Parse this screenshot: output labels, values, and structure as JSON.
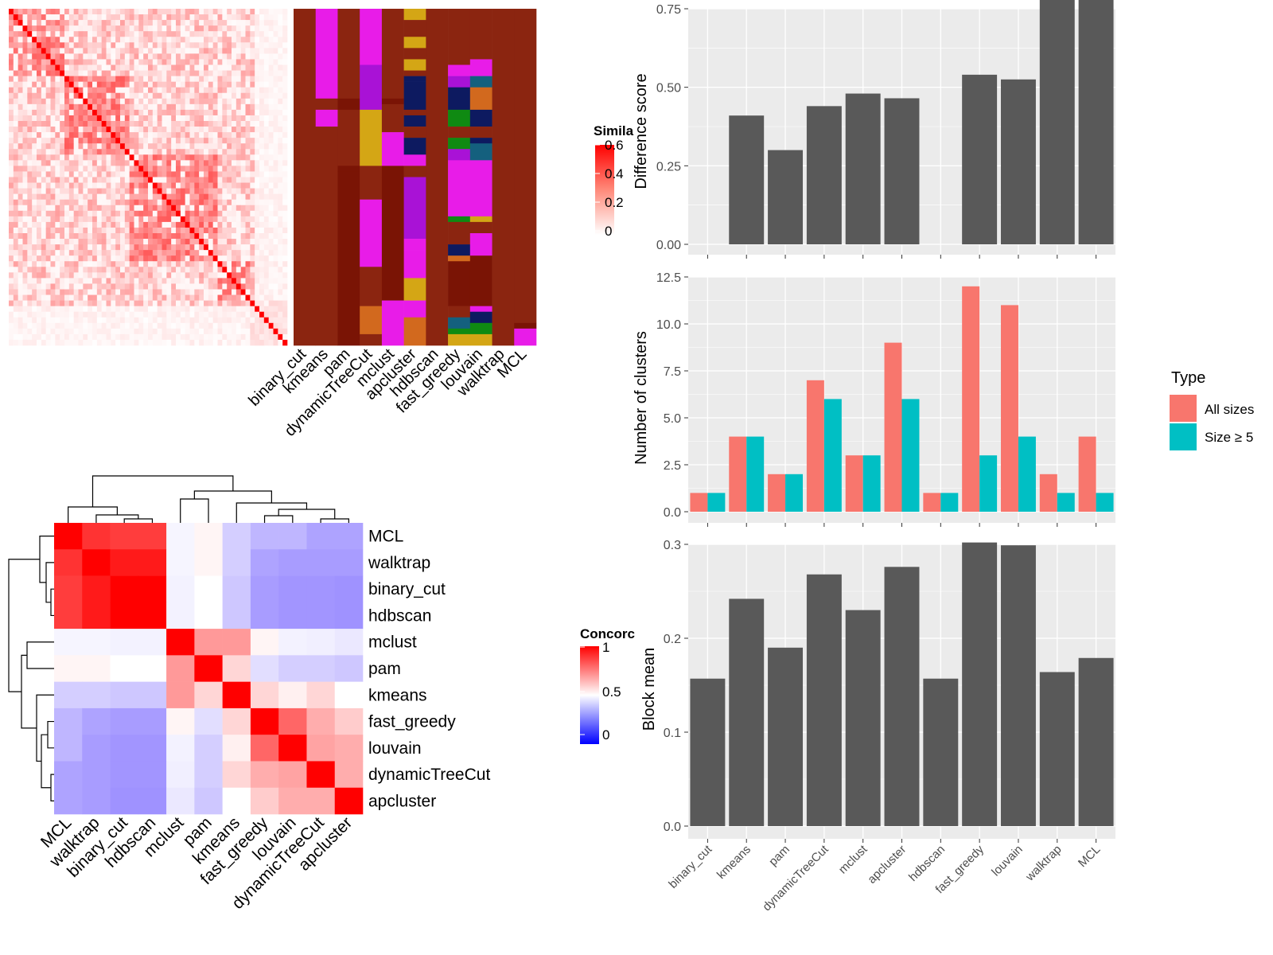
{
  "figure": {
    "similarity_legend_title": "Simila",
    "similarity_legend_ticks": [
      "0.6",
      "0.4",
      "0.2",
      "0"
    ],
    "concordance_legend_title": "Concorc",
    "concordance_legend_ticks": [
      "1",
      "0.5",
      "0"
    ],
    "type_legend_title": "Type",
    "colors": {
      "panel_bg": "#EBEBEB",
      "grid": "#FFFFFF",
      "bar_gray": "#595959",
      "all_sizes": "#F8766D",
      "size5": "#00BFC4",
      "heat_red": "#FF0000",
      "heat_blue": "#0000FF"
    }
  },
  "chart_data": [
    {
      "id": "difference",
      "type": "bar",
      "categories": [
        "binary_cut",
        "kmeans",
        "pam",
        "dynamicTreeCut",
        "mclust",
        "apcluster",
        "hdbscan",
        "fast_greedy",
        "louvain",
        "walktrap",
        "MCL"
      ],
      "values": [
        0,
        0.41,
        0.3,
        0.44,
        0.48,
        0.465,
        0,
        0.54,
        0.525,
        0.91,
        0.905
      ],
      "ylabel": "Difference score",
      "ylim": [
        0,
        0.95
      ],
      "yticks": [
        "0.00",
        "0.25",
        "0.50",
        "0.75"
      ]
    },
    {
      "id": "clusters",
      "type": "bar",
      "categories": [
        "binary_cut",
        "kmeans",
        "pam",
        "dynamicTreeCut",
        "mclust",
        "apcluster",
        "hdbscan",
        "fast_greedy",
        "louvain",
        "walktrap",
        "MCL"
      ],
      "series": [
        {
          "name": "All sizes",
          "values": [
            1,
            4,
            2,
            7,
            3,
            9,
            1,
            12,
            11,
            2,
            4
          ]
        },
        {
          "name": "Size ≥ 5",
          "values": [
            1,
            4,
            2,
            6,
            3,
            6,
            1,
            3,
            4,
            1,
            1
          ]
        }
      ],
      "ylabel": "Number of clusters",
      "ylim": [
        0,
        12.6
      ],
      "yticks": [
        "0.0",
        "2.5",
        "5.0",
        "7.5",
        "10.0",
        "12.5"
      ],
      "legend": "right"
    },
    {
      "id": "blockmean",
      "type": "bar",
      "categories": [
        "binary_cut",
        "kmeans",
        "pam",
        "dynamicTreeCut",
        "mclust",
        "apcluster",
        "hdbscan",
        "fast_greedy",
        "louvain",
        "walktrap",
        "MCL"
      ],
      "values": [
        0.157,
        0.242,
        0.19,
        0.268,
        0.23,
        0.276,
        0.157,
        0.302,
        0.299,
        0.164,
        0.179
      ],
      "ylabel": "Block mean",
      "ylim": [
        0,
        0.315
      ],
      "yticks": [
        "0.0",
        "0.1",
        "0.2",
        "0.3"
      ]
    },
    {
      "id": "concordance",
      "type": "heatmap",
      "labels": [
        "MCL",
        "walktrap",
        "binary_cut",
        "hdbscan",
        "mclust",
        "pam",
        "kmeans",
        "fast_greedy",
        "louvain",
        "dynamicTreeCut",
        "apcluster"
      ],
      "matrix": [
        [
          1.0,
          0.9,
          0.88,
          0.88,
          0.47,
          0.52,
          0.35,
          0.28,
          0.28,
          0.22,
          0.22
        ],
        [
          0.9,
          1.0,
          0.95,
          0.95,
          0.47,
          0.52,
          0.35,
          0.22,
          0.2,
          0.2,
          0.2
        ],
        [
          0.88,
          0.95,
          1.0,
          1.0,
          0.46,
          0.5,
          0.33,
          0.2,
          0.18,
          0.18,
          0.17
        ],
        [
          0.88,
          0.95,
          1.0,
          1.0,
          0.46,
          0.5,
          0.33,
          0.2,
          0.18,
          0.18,
          0.17
        ],
        [
          0.47,
          0.47,
          0.46,
          0.46,
          1.0,
          0.7,
          0.7,
          0.52,
          0.46,
          0.45,
          0.43
        ],
        [
          0.52,
          0.52,
          0.5,
          0.5,
          0.7,
          1.0,
          0.58,
          0.4,
          0.35,
          0.35,
          0.33
        ],
        [
          0.35,
          0.35,
          0.33,
          0.33,
          0.7,
          0.58,
          1.0,
          0.58,
          0.53,
          0.58,
          0.5
        ],
        [
          0.28,
          0.22,
          0.2,
          0.2,
          0.52,
          0.4,
          0.58,
          1.0,
          0.8,
          0.66,
          0.6
        ],
        [
          0.28,
          0.2,
          0.18,
          0.18,
          0.46,
          0.35,
          0.53,
          0.8,
          1.0,
          0.68,
          0.66
        ],
        [
          0.22,
          0.2,
          0.18,
          0.18,
          0.45,
          0.35,
          0.58,
          0.66,
          0.68,
          1.0,
          0.66
        ],
        [
          0.22,
          0.2,
          0.17,
          0.17,
          0.43,
          0.33,
          0.5,
          0.6,
          0.66,
          0.66,
          1.0
        ]
      ],
      "zlim": [
        0,
        1
      ]
    },
    {
      "id": "similarity",
      "type": "heatmap",
      "n_terms": 60,
      "zlim": [
        0,
        0.6
      ],
      "annotation_columns": [
        "binary_cut",
        "kmeans",
        "pam",
        "dynamicTreeCut",
        "mclust",
        "apcluster",
        "hdbscan",
        "fast_greedy",
        "louvain",
        "walktrap",
        "MCL"
      ],
      "annotation_palette": [
        "#8B2510",
        "#E81CE8",
        "#D4A615",
        "#A912D6",
        "#0D1A60",
        "#0F8A12",
        "#D2691E",
        "#14607E",
        "#7A1405",
        "#A12F0E"
      ]
    }
  ]
}
